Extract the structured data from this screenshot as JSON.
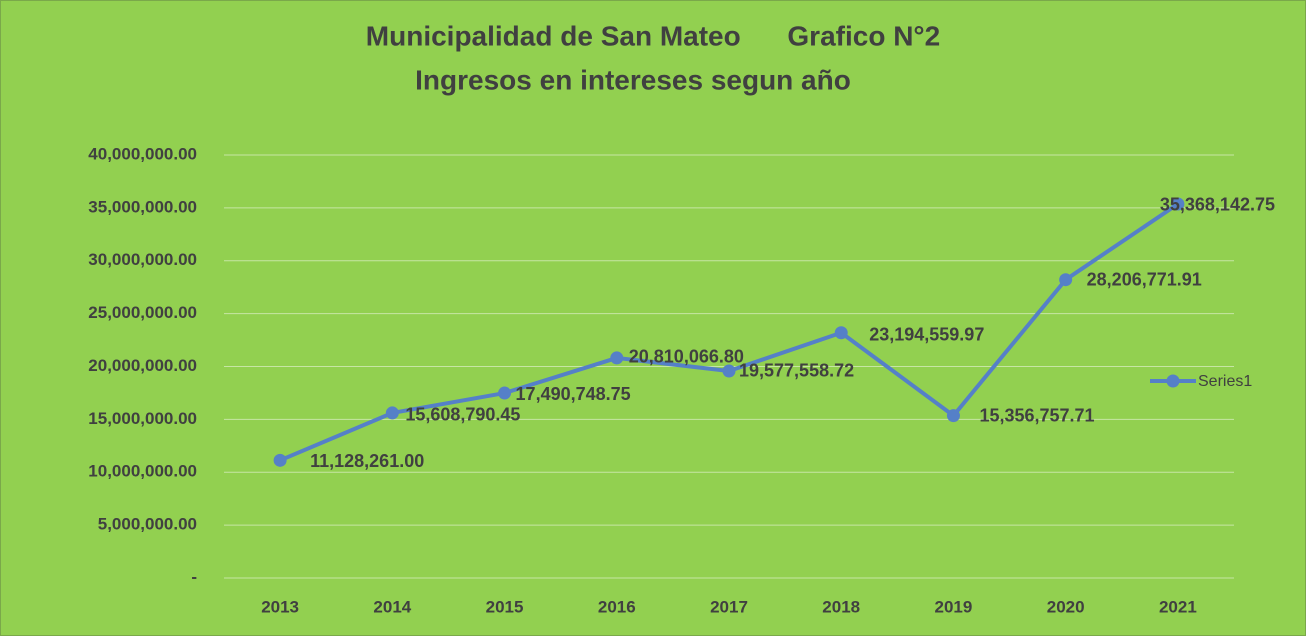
{
  "chart_data": {
    "type": "line",
    "title": "Municipalidad de San Mateo      Grafico N°2",
    "subtitle": "Ingresos en intereses segun año",
    "categories": [
      "2013",
      "2014",
      "2015",
      "2016",
      "2017",
      "2018",
      "2019",
      "2020",
      "2021"
    ],
    "series": [
      {
        "name": "Series1",
        "color": "#5580c8",
        "values": [
          11128261.0,
          15608790.45,
          17490748.75,
          20810066.8,
          19577558.72,
          23194559.97,
          15356757.71,
          28206771.91,
          35368142.75
        ],
        "value_labels": [
          "11,128,261.00",
          "15,608,790.45",
          "17,490,748.75",
          "20,810,066.80",
          "19,577,558.72",
          "23,194,559.97",
          "15,356,757.71",
          "28,206,771.91",
          "35,368,142.75"
        ]
      }
    ],
    "ylim": [
      0,
      40000000
    ],
    "yticks": [
      {
        "value": 0,
        "label": "-"
      },
      {
        "value": 5000000,
        "label": "5,000,000.00"
      },
      {
        "value": 10000000,
        "label": "10,000,000.00"
      },
      {
        "value": 15000000,
        "label": "15,000,000.00"
      },
      {
        "value": 20000000,
        "label": "20,000,000.00"
      },
      {
        "value": 25000000,
        "label": "25,000,000.00"
      },
      {
        "value": 30000000,
        "label": "30,000,000.00"
      },
      {
        "value": 35000000,
        "label": "35,000,000.00"
      },
      {
        "value": 40000000,
        "label": "40,000,000.00"
      }
    ],
    "grid": true,
    "legend": "right"
  }
}
